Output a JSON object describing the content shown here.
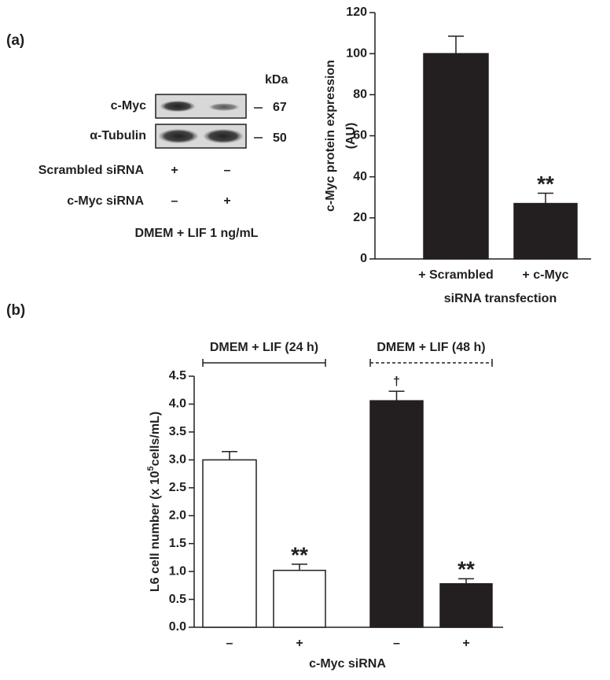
{
  "blot": {
    "unit": "kDa",
    "rows": [
      {
        "label": "c-Myc",
        "size": 67
      },
      {
        "label": "α-Tubulin",
        "size": 50
      }
    ],
    "conditions": [
      {
        "label": "Scrambled siRNA",
        "lanes": [
          "+",
          "–"
        ]
      },
      {
        "label": "c-Myc siRNA",
        "lanes": [
          "–",
          "+"
        ]
      }
    ],
    "medium": "DMEM + LIF 1 ng/mL"
  },
  "chart_data": [
    {
      "type": "bar",
      "panel": "(a)",
      "ylabel": [
        "c-Myc protein expression",
        "(AU)"
      ],
      "categories": [
        "+ Scrambled",
        "+ c-Myc"
      ],
      "xlabel": "siRNA transfection",
      "values": [
        100,
        27
      ],
      "errors": [
        8.5,
        5
      ],
      "markers": [
        null,
        "**"
      ],
      "color": "#231f20",
      "ylim": [
        0,
        120
      ],
      "yticks": [
        0,
        20,
        40,
        60,
        80,
        100,
        120
      ]
    },
    {
      "type": "bar",
      "panel": "(b)",
      "ylabel": "L6 cell number (x 10",
      "ylabel_sup": "5",
      "ylabel_end": "cells/mL)",
      "categories": [
        "–",
        "+",
        "–",
        "+"
      ],
      "xlabel": "c-Myc siRNA",
      "values": [
        3.0,
        1.02,
        4.06,
        0.78
      ],
      "errors": [
        0.15,
        0.11,
        0.17,
        0.09
      ],
      "markers": [
        null,
        "**",
        "†",
        "**"
      ],
      "colors": [
        "#ffffff",
        "#ffffff",
        "#231f20",
        "#231f20"
      ],
      "groups": [
        {
          "label": "DMEM + LIF (24 h)",
          "line_style": "solid"
        },
        {
          "label": "DMEM + LIF (48 h)",
          "line_style": "dashed"
        }
      ],
      "ylim": [
        0,
        4.5
      ],
      "yticks": [
        {
          "value": 0,
          "label": "0.0"
        },
        0.5,
        {
          "value": 1,
          "label": "1.0"
        },
        1.5,
        {
          "value": 2,
          "label": "2.0"
        },
        2.5,
        {
          "value": 3,
          "label": "3.0"
        },
        3.5,
        {
          "value": 4,
          "label": "4.0"
        },
        4.5
      ]
    }
  ]
}
